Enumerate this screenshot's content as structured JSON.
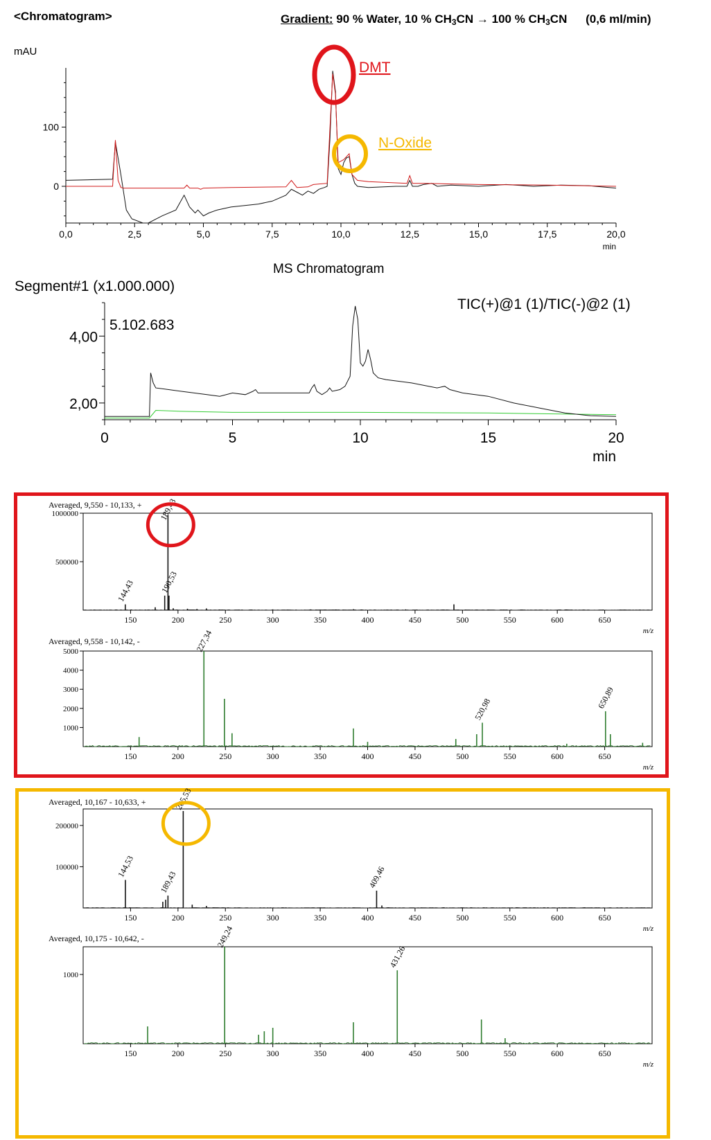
{
  "header": {
    "title": "<Chromatogram>",
    "gradient_label": "Gradient:",
    "gradient_start": "90 % Water, 10 % CH",
    "gradient_sub": "3",
    "gradient_cn": "CN",
    "gradient_end": "100 % CH",
    "flow": "(0,6 ml/min)"
  },
  "colors": {
    "uv_trace": "#d01818",
    "ms_trace": "#111111",
    "neg_trace": "#2f7d2f",
    "dmt": "#e0151b",
    "noxide": "#f5b800",
    "green_line": "#33cc33"
  },
  "uv": {
    "ylabel": "mAU",
    "xunit": "min",
    "dmt_label": "DMT",
    "noxide_label": "N-Oxide",
    "chart_data": {
      "type": "line",
      "xlim": [
        0,
        20
      ],
      "ylim": [
        -62,
        200
      ],
      "xticks": [
        "0,0",
        "2,5",
        "5,0",
        "7,5",
        "10,0",
        "12,5",
        "15,0",
        "17,5",
        "20,0"
      ],
      "yticks": [
        "0",
        "100"
      ],
      "series": [
        {
          "color": "red",
          "x": [
            0,
            1.7,
            1.8,
            1.9,
            2.0,
            2.1,
            2.2,
            2.4,
            3.0,
            4.3,
            4.4,
            4.5,
            4.8,
            4.9,
            5.0,
            6.0,
            8.0,
            8.2,
            8.4,
            8.8,
            9.0,
            9.5,
            9.7,
            9.8,
            9.9,
            10.1,
            10.3,
            10.4,
            10.6,
            11.0,
            12.4,
            12.5,
            12.6,
            13.0,
            14.0,
            15.0,
            17.5,
            20.0
          ],
          "y": [
            0,
            0,
            78,
            10,
            -2,
            -3,
            -3,
            -3,
            -3,
            -3,
            2,
            -3,
            -3,
            -5,
            -3,
            -2,
            -1,
            10,
            -2,
            -1,
            3,
            5,
            190,
            155,
            40,
            45,
            55,
            20,
            10,
            8,
            5,
            18,
            5,
            5,
            4,
            3,
            2,
            0
          ]
        },
        {
          "color": "black",
          "x": [
            0,
            1.7,
            1.8,
            2.0,
            2.2,
            2.4,
            2.8,
            3.0,
            3.5,
            4.0,
            4.3,
            4.5,
            4.7,
            4.8,
            5.0,
            5.2,
            5.5,
            6.0,
            7.0,
            7.5,
            8.0,
            8.2,
            8.4,
            8.6,
            8.8,
            9.0,
            9.2,
            9.4,
            9.5,
            9.6,
            9.7,
            9.8,
            9.9,
            10.0,
            10.1,
            10.2,
            10.3,
            10.4,
            10.5,
            10.6,
            11.0,
            12.0,
            12.4,
            12.5,
            12.6,
            12.8,
            13.0,
            13.3,
            13.5,
            14.0,
            15.0,
            16.0,
            17.0,
            18.0,
            19.0,
            20.0
          ],
          "y": [
            10,
            12,
            75,
            20,
            -40,
            -55,
            -62,
            -62,
            -50,
            -40,
            -15,
            -35,
            -45,
            -40,
            -50,
            -45,
            -40,
            -35,
            -30,
            -25,
            -15,
            -5,
            -10,
            -15,
            -8,
            -12,
            -5,
            -2,
            0,
            80,
            195,
            160,
            30,
            20,
            40,
            48,
            50,
            20,
            5,
            0,
            -2,
            0,
            0,
            10,
            0,
            0,
            3,
            5,
            0,
            2,
            0,
            3,
            0,
            2,
            1,
            -3
          ]
        }
      ]
    }
  },
  "ms": {
    "title": "MS Chromatogram",
    "segment": "Segment#1 (x1.000.000)",
    "tic_label": "TIC(+)@1 (1)/TIC(-)@2 (1)",
    "max_label": "5.102.683",
    "xunit": "min",
    "chart_data": {
      "type": "line",
      "xlim": [
        0,
        20
      ],
      "ylim": [
        1.5,
        5.0
      ],
      "xticks": [
        "0",
        "5",
        "10",
        "15",
        "20"
      ],
      "yticks": [
        "2,00",
        "4,00"
      ],
      "series": [
        {
          "color": "black",
          "x": [
            0,
            1.75,
            1.8,
            1.9,
            2.0,
            2.5,
            3.0,
            4.0,
            4.5,
            5.0,
            5.5,
            5.8,
            5.9,
            6.0,
            6.5,
            7.0,
            7.5,
            8.0,
            8.1,
            8.2,
            8.3,
            8.5,
            8.7,
            8.8,
            8.9,
            9.2,
            9.4,
            9.6,
            9.7,
            9.8,
            9.9,
            10.0,
            10.1,
            10.2,
            10.3,
            10.4,
            10.5,
            10.7,
            11.0,
            12.0,
            13.0,
            13.3,
            13.5,
            14.0,
            15.0,
            16.0,
            17.0,
            18.0,
            19.0,
            20.0
          ],
          "y": [
            1.6,
            1.6,
            2.9,
            2.6,
            2.45,
            2.4,
            2.35,
            2.25,
            2.2,
            2.3,
            2.25,
            2.35,
            2.4,
            2.3,
            2.3,
            2.3,
            2.3,
            2.3,
            2.45,
            2.55,
            2.35,
            2.25,
            2.35,
            2.45,
            2.35,
            2.4,
            2.5,
            2.8,
            4.3,
            4.9,
            4.5,
            3.2,
            3.1,
            3.25,
            3.6,
            3.3,
            2.9,
            2.75,
            2.7,
            2.6,
            2.45,
            2.5,
            2.4,
            2.3,
            2.2,
            2.0,
            1.85,
            1.7,
            1.62,
            1.6
          ]
        },
        {
          "color": "green",
          "x": [
            0,
            1.75,
            2.0,
            3.0,
            5.0,
            10.0,
            15.0,
            20.0
          ],
          "y": [
            1.55,
            1.55,
            1.78,
            1.75,
            1.72,
            1.72,
            1.7,
            1.65
          ]
        }
      ]
    }
  },
  "spectra": [
    {
      "title": "Averaged, 9,550 - 10,133, +",
      "color": "black",
      "xlim": [
        100,
        700
      ],
      "ymax": 1000000,
      "yticks": [
        {
          "v": 500000,
          "label": "500000"
        },
        {
          "v": 1000000,
          "label": "1000000"
        }
      ],
      "peaks": [
        [
          144.43,
          60000
        ],
        [
          176,
          30000
        ],
        [
          186,
          150000
        ],
        [
          189.43,
          980000
        ],
        [
          190.53,
          150000
        ],
        [
          195,
          20000
        ],
        [
          210,
          15000
        ],
        [
          220,
          12000
        ],
        [
          230,
          18000
        ],
        [
          300,
          8000
        ],
        [
          340,
          8000
        ],
        [
          385,
          10000
        ],
        [
          440,
          8000
        ],
        [
          491,
          60000
        ]
      ],
      "labels": [
        {
          "x": 144.43,
          "y": 60000,
          "t": "144,43"
        },
        {
          "x": 189.43,
          "y": 900000,
          "t": "189,43"
        },
        {
          "x": 190.53,
          "y": 150000,
          "t": "190,53"
        }
      ],
      "circle": {
        "x": 189.43,
        "y": 880000,
        "color": "red"
      }
    },
    {
      "title": "Averaged, 9,558 - 10,142, -",
      "color": "green",
      "xlim": [
        100,
        700
      ],
      "ymax": 5000,
      "yticks": [
        {
          "v": 1000,
          "label": "1000"
        },
        {
          "v": 2000,
          "label": "2000"
        },
        {
          "v": 3000,
          "label": "3000"
        },
        {
          "v": 4000,
          "label": "4000"
        },
        {
          "v": 5000,
          "label": "5000"
        }
      ],
      "peaks": [
        [
          159,
          500
        ],
        [
          227.34,
          5000
        ],
        [
          249,
          2500
        ],
        [
          257,
          700
        ],
        [
          385,
          950
        ],
        [
          400,
          250
        ],
        [
          493,
          400
        ],
        [
          515,
          650
        ],
        [
          520.98,
          1250
        ],
        [
          610,
          150
        ],
        [
          650.89,
          1850
        ],
        [
          656,
          650
        ],
        [
          690,
          200
        ]
      ],
      "labels": [
        {
          "x": 227.34,
          "y": 5000,
          "t": "227,34"
        },
        {
          "x": 520.98,
          "y": 1250,
          "t": "520,98"
        },
        {
          "x": 650.89,
          "y": 1850,
          "t": "650,89"
        }
      ]
    },
    {
      "title": "Averaged, 10,167 - 10,633, +",
      "color": "black",
      "xlim": [
        100,
        700
      ],
      "ymax": 240000,
      "yticks": [
        {
          "v": 100000,
          "label": "100000"
        },
        {
          "v": 200000,
          "label": "200000"
        }
      ],
      "peaks": [
        [
          144.53,
          68000
        ],
        [
          184,
          15000
        ],
        [
          187,
          20000
        ],
        [
          189.43,
          30000
        ],
        [
          205.53,
          235000
        ],
        [
          215,
          8000
        ],
        [
          230,
          5000
        ],
        [
          409.46,
          42000
        ],
        [
          415,
          6000
        ]
      ],
      "labels": [
        {
          "x": 144.53,
          "y": 68000,
          "t": "144,53"
        },
        {
          "x": 189.43,
          "y": 30000,
          "t": "189,43"
        },
        {
          "x": 205.53,
          "y": 235000,
          "t": "205,53"
        },
        {
          "x": 409.46,
          "y": 42000,
          "t": "409,46"
        }
      ],
      "circle": {
        "x": 205.53,
        "y": 205000,
        "color": "yellow"
      }
    },
    {
      "title": "Averaged, 10,175 - 10,642, -",
      "color": "green",
      "xlim": [
        100,
        700
      ],
      "ymax": 1400,
      "yticks": [
        {
          "v": 1000,
          "label": "1000"
        }
      ],
      "peaks": [
        [
          168,
          250
        ],
        [
          249.24,
          1400
        ],
        [
          285,
          130
        ],
        [
          291,
          180
        ],
        [
          300,
          230
        ],
        [
          385,
          310
        ],
        [
          431.26,
          1060
        ],
        [
          520,
          350
        ],
        [
          545,
          80
        ]
      ],
      "labels": [
        {
          "x": 249.24,
          "y": 1400,
          "t": "249,24"
        },
        {
          "x": 431.26,
          "y": 1060,
          "t": "431,26"
        }
      ]
    }
  ],
  "spectrum_xticks": [
    "150",
    "200",
    "250",
    "300",
    "350",
    "400",
    "450",
    "500",
    "550",
    "600",
    "650"
  ],
  "spectrum_xunit": "m/z"
}
